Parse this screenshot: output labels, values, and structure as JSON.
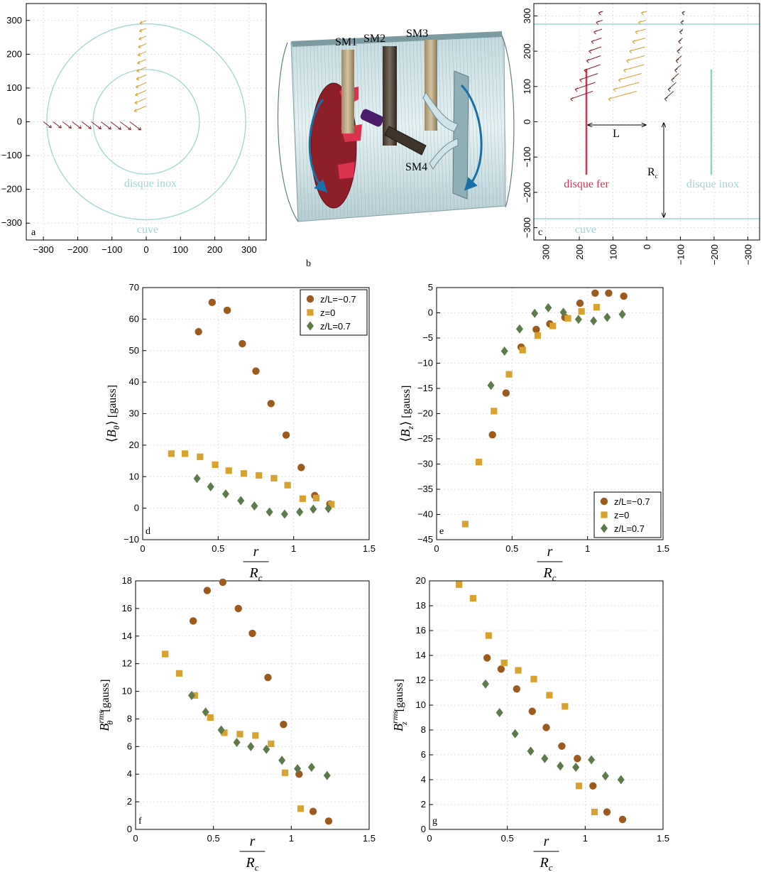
{
  "colors": {
    "series1": "#9c5a1e",
    "series2": "#d9a12d",
    "series3": "#5c7a4a",
    "cyan": "#9fd6d6",
    "red": "#d9334d",
    "teal": "#8ed2c0"
  },
  "panels": {
    "a": {
      "letter": "a",
      "annotations": {
        "inner": "disque inox",
        "outer": "cuve"
      }
    },
    "b": {
      "letter": "b",
      "labels": {
        "sm1": "SM1",
        "sm2": "SM2",
        "sm3": "SM3",
        "sm4": "SM4"
      }
    },
    "c": {
      "letter": "c",
      "annotations": {
        "L": "L",
        "Rc": "R",
        "Rc_sub": "c",
        "disque_fer": "disque fer",
        "disque_inox": "disque inox",
        "cuve": "cuve"
      }
    },
    "d": {
      "letter": "d"
    },
    "e": {
      "letter": "e"
    },
    "f": {
      "letter": "f"
    },
    "g": {
      "letter": "g"
    }
  },
  "legend": [
    "z/L=−0.7",
    "z=0",
    "z/L=0.7"
  ],
  "chart_data": [
    {
      "panel": "a",
      "type": "scatter",
      "xlim": [
        -350,
        350
      ],
      "ylim": [
        -350,
        350
      ],
      "xticks": [
        "−300",
        "−200",
        "−100",
        "0",
        "100",
        "200",
        "300"
      ],
      "yticks": [
        "300",
        "200",
        "100",
        "0",
        "−100",
        "−200",
        "−300"
      ],
      "circles": [
        {
          "name": "disque inox",
          "r": 155
        },
        {
          "name": "cuve",
          "r": 290
        }
      ]
    },
    {
      "panel": "c",
      "type": "scatter",
      "xlim": [
        335,
        -335
      ],
      "ylim": [
        -335,
        335
      ],
      "xticks": [
        "300",
        "200",
        "100",
        "0",
        "−100",
        "−200",
        "−300"
      ],
      "yticks": [
        "300",
        "200",
        "100",
        "0",
        "−100",
        "−200",
        "−300"
      ]
    },
    {
      "panel": "d",
      "type": "scatter",
      "ylabel": "⟨B_θ⟩ [gauss]",
      "xlabel": "r / R_c",
      "xlim": [
        0,
        1.5
      ],
      "ylim": [
        -10,
        70
      ],
      "xticks": [
        "0",
        "0.5",
        "1",
        "1.5"
      ],
      "yticks": [
        "70",
        "60",
        "50",
        "40",
        "30",
        "20",
        "10",
        "0",
        "−10"
      ],
      "legend_position": "top-right",
      "series": [
        {
          "name": "z/L=−0.7",
          "x": [
            0.37,
            0.46,
            0.56,
            0.66,
            0.75,
            0.85,
            0.95,
            1.05,
            1.14,
            1.24
          ],
          "y": [
            56,
            65.3,
            62.8,
            52.2,
            43.5,
            33.2,
            23.2,
            12.9,
            4,
            1.3
          ]
        },
        {
          "name": "z=0",
          "x": [
            0.19,
            0.28,
            0.38,
            0.48,
            0.57,
            0.67,
            0.77,
            0.87,
            0.96,
            1.06,
            1.15,
            1.25
          ],
          "y": [
            17.3,
            17.3,
            16.3,
            13.8,
            11.9,
            11,
            10.4,
            9.5,
            7.3,
            3,
            3.2,
            1.2
          ]
        },
        {
          "name": "z/L=0.7",
          "x": [
            0.36,
            0.45,
            0.55,
            0.65,
            0.74,
            0.84,
            0.94,
            1.04,
            1.13,
            1.23
          ],
          "y": [
            9.4,
            6.8,
            4.5,
            2.4,
            0.7,
            -1.2,
            -1.9,
            -1.2,
            -0.3,
            -0.1
          ]
        }
      ]
    },
    {
      "panel": "e",
      "type": "scatter",
      "ylabel": "⟨B_z⟩ [gauss]",
      "xlabel": "r / R_c",
      "xlim": [
        0,
        1.5
      ],
      "ylim": [
        -45,
        5
      ],
      "xticks": [
        "0",
        "0.5",
        "1",
        "1.5"
      ],
      "yticks": [
        "5",
        "0",
        "−5",
        "−10",
        "−15",
        "−20",
        "−25",
        "−30",
        "−35",
        "−40",
        "−45"
      ],
      "legend_position": "bottom-right",
      "series": [
        {
          "name": "z/L=−0.7",
          "x": [
            0.37,
            0.46,
            0.56,
            0.66,
            0.75,
            0.85,
            0.95,
            1.05,
            1.14,
            1.24
          ],
          "y": [
            -24.2,
            -15.9,
            -6.8,
            -3.3,
            -2.2,
            -0.9,
            1.9,
            3.9,
            3.9,
            3.3
          ]
        },
        {
          "name": "z=0",
          "x": [
            0.19,
            0.28,
            0.38,
            0.48,
            0.57,
            0.67,
            0.77,
            0.87,
            0.96,
            1.06
          ],
          "y": [
            -41.9,
            -29.6,
            -19.5,
            -12.2,
            -7.4,
            -4.5,
            -2.6,
            -1.1,
            0.3,
            1.1
          ]
        },
        {
          "name": "z/L=0.7",
          "x": [
            0.36,
            0.45,
            0.55,
            0.65,
            0.74,
            0.84,
            0.94,
            1.04,
            1.13,
            1.23
          ],
          "y": [
            -14.4,
            -7.6,
            -3.2,
            -0.1,
            1,
            0.1,
            -1.3,
            -1.6,
            -0.9,
            -0.3
          ]
        }
      ]
    },
    {
      "panel": "f",
      "type": "scatter",
      "ylabel": "B_θ^rms [gauss]",
      "xlabel": "r / R_c",
      "xlim": [
        0,
        1.5
      ],
      "ylim": [
        0,
        18
      ],
      "xticks": [
        "0",
        "0.5",
        "1",
        "1.5"
      ],
      "yticks": [
        "18",
        "16",
        "14",
        "12",
        "10",
        "8",
        "6",
        "4",
        "2",
        "0"
      ],
      "series": [
        {
          "name": "z/L=−0.7",
          "x": [
            0.37,
            0.46,
            0.56,
            0.66,
            0.75,
            0.85,
            0.95,
            1.05,
            1.14,
            1.24
          ],
          "y": [
            15.1,
            17.3,
            17.9,
            16,
            14.2,
            11,
            7.6,
            4,
            1.3,
            0.6
          ]
        },
        {
          "name": "z=0",
          "x": [
            0.19,
            0.28,
            0.38,
            0.48,
            0.57,
            0.67,
            0.77,
            0.87,
            0.96,
            1.06
          ],
          "y": [
            12.7,
            11.3,
            9.7,
            8.1,
            7,
            6.9,
            6.8,
            6.2,
            4.1,
            1.5
          ]
        },
        {
          "name": "z/L=0.7",
          "x": [
            0.36,
            0.45,
            0.55,
            0.65,
            0.74,
            0.84,
            0.94,
            1.04,
            1.13,
            1.23
          ],
          "y": [
            9.7,
            8.5,
            7.2,
            6.3,
            6,
            5.8,
            5,
            4.4,
            4.5,
            3.9
          ]
        }
      ]
    },
    {
      "panel": "g",
      "type": "scatter",
      "ylabel": "B_z^rms [gauss]",
      "xlabel": "r / R_c",
      "xlim": [
        0,
        1.5
      ],
      "ylim": [
        0,
        20
      ],
      "xticks": [
        "0",
        "0.5",
        "1",
        "1.5"
      ],
      "yticks": [
        "20",
        "18",
        "16",
        "14",
        "12",
        "10",
        "8",
        "6",
        "4",
        "2",
        "0"
      ],
      "series": [
        {
          "name": "z/L=−0.7",
          "x": [
            0.37,
            0.46,
            0.56,
            0.66,
            0.75,
            0.85,
            0.95,
            1.05,
            1.14,
            1.24
          ],
          "y": [
            13.8,
            12.9,
            11.3,
            9.5,
            8.2,
            6.7,
            5.7,
            3.5,
            1.4,
            0.8
          ]
        },
        {
          "name": "z=0",
          "x": [
            0.19,
            0.28,
            0.38,
            0.48,
            0.57,
            0.67,
            0.77,
            0.87,
            0.96,
            1.06
          ],
          "y": [
            19.7,
            18.6,
            15.6,
            13.4,
            12.8,
            12.1,
            10.8,
            9.9,
            3.5,
            1.4
          ]
        },
        {
          "name": "z/L=0.7",
          "x": [
            0.36,
            0.45,
            0.55,
            0.65,
            0.74,
            0.84,
            0.94,
            1.04,
            1.13,
            1.23
          ],
          "y": [
            11.7,
            9.4,
            7.7,
            6.3,
            5.7,
            5.1,
            5,
            5.6,
            4.3,
            4
          ]
        }
      ]
    }
  ]
}
